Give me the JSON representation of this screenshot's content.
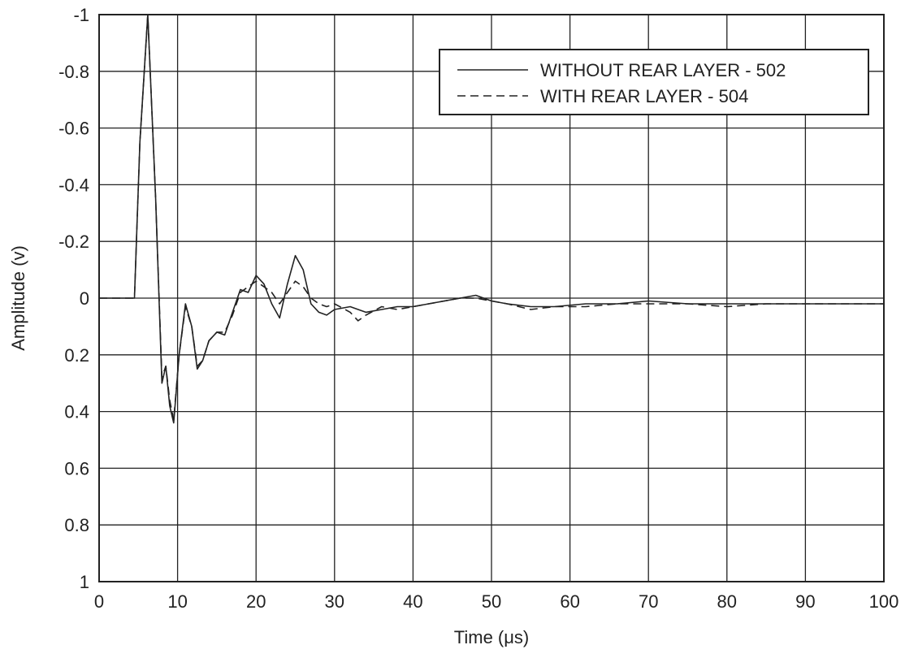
{
  "chart_data": {
    "type": "line",
    "title": "",
    "xlabel": "Time (μs)",
    "ylabel": "Amplitude (v)",
    "xlim": [
      0,
      100
    ],
    "ylim": [
      -1,
      1
    ],
    "grid": true,
    "legend_position": "top-right",
    "x_ticks": [
      "0",
      "10",
      "20",
      "30",
      "40",
      "50",
      "60",
      "70",
      "80",
      "90",
      "100"
    ],
    "y_ticks": [
      "-1",
      "-0.8",
      "-0.6",
      "-0.4",
      "-0.2",
      "0",
      "0.2",
      "0.4",
      "0.6",
      "0.8",
      "1"
    ],
    "y_tick_labels": [
      "1",
      "0.8",
      "0.6",
      "0.4",
      "0.2",
      "0",
      "-0.2",
      "-0.4",
      "-0.6",
      "-0.8",
      "-1"
    ],
    "series": [
      {
        "name": "WITHOUT REAR LAYER - 502",
        "style": "solid",
        "x": [
          0,
          4.5,
          5.2,
          6.2,
          7.2,
          8.0,
          8.5,
          9.0,
          9.5,
          10.2,
          11.0,
          11.8,
          12.5,
          13.2,
          14.0,
          15.0,
          16.0,
          17.0,
          18.0,
          19.0,
          20.0,
          21.0,
          22.0,
          23.0,
          24.0,
          25.0,
          26.0,
          27.0,
          28.0,
          29.0,
          30.0,
          32.0,
          34.0,
          36.0,
          38.0,
          40.0,
          42.0,
          44.0,
          46.0,
          48.0,
          50.0,
          52.0,
          55.0,
          58.0,
          62.0,
          66.0,
          70.0,
          75.0,
          80.0,
          85.0,
          90.0,
          95.0,
          100.0
        ],
        "y": [
          0,
          0.0,
          0.55,
          1.0,
          0.35,
          -0.3,
          -0.24,
          -0.38,
          -0.44,
          -0.2,
          -0.02,
          -0.1,
          -0.25,
          -0.22,
          -0.15,
          -0.12,
          -0.13,
          -0.05,
          0.03,
          0.02,
          0.08,
          0.05,
          -0.02,
          -0.07,
          0.05,
          0.15,
          0.1,
          -0.02,
          -0.05,
          -0.06,
          -0.04,
          -0.03,
          -0.05,
          -0.04,
          -0.03,
          -0.03,
          -0.02,
          -0.01,
          0.0,
          0.01,
          -0.01,
          -0.02,
          -0.03,
          -0.03,
          -0.02,
          -0.02,
          -0.01,
          -0.02,
          -0.02,
          -0.02,
          -0.02,
          -0.02,
          -0.02
        ]
      },
      {
        "name": "WITH REAR LAYER - 504",
        "style": "dashed",
        "x": [
          0,
          4.5,
          5.2,
          6.2,
          7.2,
          8.0,
          8.5,
          9.0,
          9.5,
          10.2,
          11.0,
          11.8,
          12.5,
          13.2,
          14.0,
          15.0,
          16.0,
          17.0,
          18.0,
          19.0,
          20.0,
          21.0,
          22.0,
          23.0,
          24.0,
          25.0,
          26.0,
          27.0,
          28.0,
          29.0,
          30.0,
          32.0,
          33.0,
          34.0,
          36.0,
          38.0,
          40.0,
          42.0,
          44.0,
          46.0,
          48.0,
          50.0,
          52.0,
          55.0,
          58.0,
          62.0,
          66.0,
          70.0,
          75.0,
          80.0,
          85.0,
          90.0,
          95.0,
          100.0
        ],
        "y": [
          0,
          0.0,
          0.55,
          1.0,
          0.35,
          -0.28,
          -0.24,
          -0.36,
          -0.43,
          -0.2,
          -0.03,
          -0.1,
          -0.24,
          -0.22,
          -0.15,
          -0.12,
          -0.12,
          -0.06,
          0.02,
          0.04,
          0.06,
          0.04,
          0.02,
          -0.02,
          0.02,
          0.06,
          0.04,
          0.0,
          -0.02,
          -0.03,
          -0.02,
          -0.05,
          -0.08,
          -0.06,
          -0.03,
          -0.04,
          -0.03,
          -0.02,
          -0.01,
          0.0,
          0.0,
          -0.01,
          -0.02,
          -0.04,
          -0.03,
          -0.03,
          -0.02,
          -0.02,
          -0.02,
          -0.03,
          -0.02,
          -0.02,
          -0.02,
          -0.02
        ]
      }
    ]
  }
}
